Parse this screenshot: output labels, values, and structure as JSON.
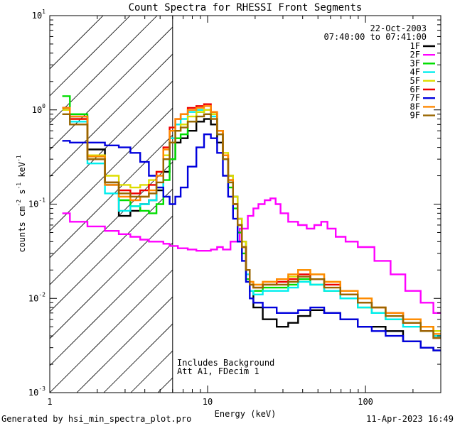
{
  "chart_data": {
    "type": "line",
    "title": "Count Spectra for RHESSI Front Segments",
    "xlabel": "Energy (keV)",
    "ylabel": {
      "base": "counts cm",
      "exp1": "-2",
      "mid": " s",
      "exp2": "-1",
      "mid2": " keV",
      "exp3": "-1"
    },
    "xscale": "log",
    "yscale": "log",
    "xlim": [
      1,
      300
    ],
    "ylim": [
      0.001,
      10
    ],
    "x_ticks": [
      {
        "value": 1,
        "label": "1"
      },
      {
        "value": 10,
        "label": "10"
      },
      {
        "value": 100,
        "label": "100"
      }
    ],
    "y_ticks": [
      {
        "value": 0.001,
        "mant": "10",
        "exp": "-3"
      },
      {
        "value": 0.01,
        "mant": "10",
        "exp": "-2"
      },
      {
        "value": 0.1,
        "mant": "10",
        "exp": "-1"
      },
      {
        "value": 1,
        "mant": "10",
        "exp": "0"
      },
      {
        "value": 10,
        "mant": "10",
        "exp": "1"
      }
    ],
    "legend_header": {
      "date": "22-Oct-2003",
      "time_range": "07:40:00 to 07:41:00"
    },
    "legend_position": "top-right",
    "hatched_region_xmax": 6,
    "annotations": [
      "Includes Background",
      "Att A1, FDecim 1"
    ],
    "footer_left": "Generated by hsi_min_spectra_plot.pro",
    "footer_right": "11-Apr-2023 16:49",
    "series": [
      {
        "name": "1F",
        "color": "#000000",
        "x": [
          1.2,
          1.5,
          2,
          2.5,
          3,
          3.5,
          4,
          4.5,
          5,
          5.5,
          6,
          6.5,
          7,
          8,
          9,
          10,
          11,
          12,
          13,
          14,
          15,
          16,
          17,
          18,
          19,
          20,
          25,
          30,
          35,
          40,
          50,
          60,
          80,
          100,
          120,
          150,
          200,
          250,
          290
        ],
        "y": [
          1.05,
          0.85,
          0.38,
          0.16,
          0.075,
          0.085,
          0.1,
          0.11,
          0.14,
          0.22,
          0.3,
          0.45,
          0.5,
          0.6,
          0.75,
          0.8,
          0.7,
          0.45,
          0.3,
          0.2,
          0.12,
          0.07,
          0.04,
          0.02,
          0.012,
          0.008,
          0.006,
          0.005,
          0.0055,
          0.0065,
          0.0075,
          0.007,
          0.006,
          0.005,
          0.005,
          0.0045,
          0.0035,
          0.003,
          0.0028
        ]
      },
      {
        "name": "2F",
        "color": "#ff00ff",
        "x": [
          1.2,
          1.5,
          2,
          2.5,
          3,
          3.5,
          4,
          4.5,
          5,
          5.5,
          6,
          7,
          8,
          9,
          10,
          11,
          12,
          13,
          15,
          17,
          19,
          20,
          22,
          24,
          26,
          28,
          30,
          35,
          40,
          45,
          50,
          55,
          60,
          70,
          80,
          100,
          130,
          160,
          200,
          250,
          290
        ],
        "y": [
          0.08,
          0.065,
          0.058,
          0.052,
          0.048,
          0.045,
          0.042,
          0.04,
          0.04,
          0.038,
          0.036,
          0.034,
          0.033,
          0.032,
          0.032,
          0.033,
          0.035,
          0.033,
          0.04,
          0.055,
          0.075,
          0.09,
          0.1,
          0.11,
          0.115,
          0.1,
          0.08,
          0.065,
          0.06,
          0.055,
          0.06,
          0.065,
          0.055,
          0.045,
          0.04,
          0.035,
          0.025,
          0.018,
          0.012,
          0.009,
          0.007
        ]
      },
      {
        "name": "3F",
        "color": "#00dd00",
        "x": [
          1.2,
          1.5,
          2,
          2.5,
          3,
          3.5,
          4,
          4.5,
          5,
          5.5,
          6,
          6.5,
          7,
          8,
          9,
          10,
          11,
          12,
          13,
          14,
          15,
          16,
          17,
          18,
          19,
          20,
          25,
          30,
          35,
          40,
          50,
          60,
          80,
          100,
          120,
          150,
          200,
          250,
          290
        ],
        "y": [
          1.4,
          0.9,
          0.32,
          0.17,
          0.11,
          0.095,
          0.085,
          0.08,
          0.1,
          0.18,
          0.3,
          0.5,
          0.55,
          0.75,
          0.95,
          1.0,
          0.9,
          0.6,
          0.3,
          0.15,
          0.09,
          0.05,
          0.03,
          0.016,
          0.012,
          0.012,
          0.013,
          0.013,
          0.014,
          0.016,
          0.014,
          0.012,
          0.01,
          0.008,
          0.007,
          0.006,
          0.0055,
          0.005,
          0.0045
        ]
      },
      {
        "name": "4F",
        "color": "#00eeee",
        "x": [
          1.2,
          1.5,
          2,
          2.5,
          3,
          3.5,
          4,
          4.5,
          5,
          5.5,
          6,
          6.5,
          7,
          8,
          9,
          10,
          11,
          12,
          13,
          14,
          15,
          16,
          17,
          18,
          19,
          20,
          25,
          30,
          35,
          40,
          50,
          60,
          80,
          100,
          120,
          150,
          200,
          250,
          290
        ],
        "y": [
          1.0,
          0.75,
          0.27,
          0.13,
          0.085,
          0.095,
          0.1,
          0.11,
          0.15,
          0.3,
          0.5,
          0.7,
          0.8,
          0.95,
          1.0,
          1.0,
          0.85,
          0.55,
          0.3,
          0.17,
          0.1,
          0.06,
          0.035,
          0.018,
          0.012,
          0.011,
          0.012,
          0.012,
          0.013,
          0.015,
          0.014,
          0.012,
          0.01,
          0.008,
          0.007,
          0.006,
          0.005,
          0.0045,
          0.004
        ]
      },
      {
        "name": "5F",
        "color": "#dddd00",
        "x": [
          1.2,
          1.5,
          2,
          2.5,
          3,
          3.5,
          4,
          4.5,
          5,
          5.5,
          6,
          6.5,
          7,
          8,
          9,
          10,
          11,
          12,
          13,
          14,
          15,
          16,
          17,
          18,
          19,
          20,
          25,
          30,
          35,
          40,
          50,
          60,
          80,
          100,
          120,
          150,
          200,
          250,
          290
        ],
        "y": [
          1.0,
          0.8,
          0.33,
          0.2,
          0.16,
          0.15,
          0.16,
          0.18,
          0.22,
          0.33,
          0.45,
          0.6,
          0.7,
          0.85,
          0.95,
          1.0,
          0.9,
          0.6,
          0.35,
          0.2,
          0.12,
          0.07,
          0.04,
          0.02,
          0.015,
          0.014,
          0.015,
          0.016,
          0.017,
          0.02,
          0.018,
          0.015,
          0.012,
          0.01,
          0.008,
          0.007,
          0.006,
          0.005,
          0.0045
        ]
      },
      {
        "name": "6F",
        "color": "#ee0000",
        "x": [
          1.2,
          1.5,
          2,
          2.5,
          3,
          3.5,
          4,
          4.5,
          5,
          5.5,
          6,
          6.5,
          7,
          8,
          9,
          10,
          11,
          12,
          13,
          14,
          15,
          16,
          17,
          18,
          19,
          20,
          25,
          30,
          35,
          40,
          50,
          60,
          80,
          100,
          120,
          150,
          200,
          250,
          290
        ],
        "y": [
          1.05,
          0.8,
          0.3,
          0.17,
          0.14,
          0.13,
          0.14,
          0.16,
          0.22,
          0.4,
          0.65,
          0.8,
          0.9,
          1.05,
          1.1,
          1.15,
          0.95,
          0.6,
          0.33,
          0.18,
          0.1,
          0.06,
          0.035,
          0.02,
          0.014,
          0.013,
          0.014,
          0.015,
          0.016,
          0.018,
          0.016,
          0.014,
          0.011,
          0.009,
          0.008,
          0.007,
          0.0055,
          0.0045,
          0.0038
        ]
      },
      {
        "name": "7F",
        "color": "#0000dd",
        "x": [
          1.2,
          1.5,
          2,
          2.5,
          3,
          3.5,
          4,
          4.5,
          5,
          5.5,
          6,
          6.5,
          7,
          8,
          9,
          10,
          11,
          12,
          13,
          14,
          15,
          16,
          17,
          18,
          19,
          20,
          25,
          30,
          35,
          40,
          50,
          60,
          80,
          100,
          120,
          150,
          200,
          250,
          290
        ],
        "y": [
          0.47,
          0.45,
          0.45,
          0.42,
          0.4,
          0.35,
          0.28,
          0.2,
          0.15,
          0.12,
          0.1,
          0.12,
          0.15,
          0.25,
          0.4,
          0.55,
          0.5,
          0.35,
          0.2,
          0.12,
          0.07,
          0.04,
          0.025,
          0.015,
          0.01,
          0.009,
          0.008,
          0.007,
          0.007,
          0.0075,
          0.008,
          0.007,
          0.006,
          0.005,
          0.0045,
          0.004,
          0.0035,
          0.003,
          0.0028
        ]
      },
      {
        "name": "8F",
        "color": "#ff8800",
        "x": [
          1.2,
          1.5,
          2,
          2.5,
          3,
          3.5,
          4,
          4.5,
          5,
          5.5,
          6,
          6.5,
          7,
          8,
          9,
          10,
          11,
          12,
          13,
          14,
          15,
          16,
          17,
          18,
          19,
          20,
          25,
          30,
          35,
          40,
          50,
          60,
          80,
          100,
          120,
          150,
          200,
          250,
          290
        ],
        "y": [
          1.05,
          0.85,
          0.32,
          0.16,
          0.12,
          0.11,
          0.12,
          0.14,
          0.2,
          0.38,
          0.6,
          0.8,
          0.9,
          1.0,
          1.05,
          1.1,
          0.95,
          0.6,
          0.33,
          0.18,
          0.1,
          0.06,
          0.035,
          0.02,
          0.015,
          0.014,
          0.015,
          0.016,
          0.018,
          0.02,
          0.018,
          0.015,
          0.012,
          0.01,
          0.008,
          0.007,
          0.006,
          0.005,
          0.0042
        ]
      },
      {
        "name": "9F",
        "color": "#996600",
        "x": [
          1.2,
          1.5,
          2,
          2.5,
          3,
          3.5,
          4,
          4.5,
          5,
          5.5,
          6,
          6.5,
          7,
          8,
          9,
          10,
          11,
          12,
          13,
          14,
          15,
          16,
          17,
          18,
          19,
          20,
          25,
          30,
          35,
          40,
          50,
          60,
          80,
          100,
          120,
          150,
          200,
          250,
          290
        ],
        "y": [
          0.9,
          0.7,
          0.3,
          0.17,
          0.13,
          0.12,
          0.12,
          0.13,
          0.17,
          0.3,
          0.45,
          0.6,
          0.65,
          0.75,
          0.85,
          0.9,
          0.8,
          0.55,
          0.3,
          0.17,
          0.1,
          0.06,
          0.035,
          0.02,
          0.014,
          0.013,
          0.014,
          0.014,
          0.015,
          0.017,
          0.016,
          0.013,
          0.011,
          0.009,
          0.008,
          0.0065,
          0.0055,
          0.0045,
          0.0038
        ]
      }
    ]
  }
}
